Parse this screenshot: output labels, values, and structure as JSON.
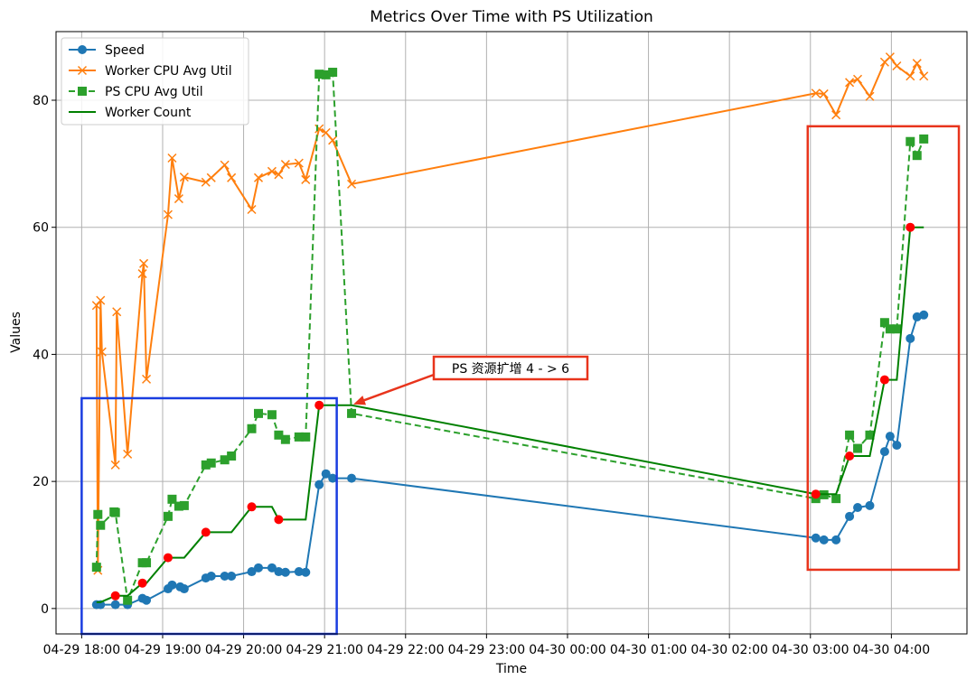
{
  "chart_data": {
    "type": "line",
    "title": "Metrics Over Time with PS Utilization",
    "xlabel": "Time",
    "ylabel": "Values",
    "x": [
      "04-29 18:11",
      "04-29 18:14",
      "04-29 18:25",
      "04-29 18:34",
      "04-29 18:45",
      "04-29 18:48",
      "04-29 19:04",
      "04-29 19:07",
      "04-29 19:13",
      "04-29 19:16",
      "04-29 19:32",
      "04-29 19:36",
      "04-29 19:46",
      "04-29 19:51",
      "04-29 20:06",
      "04-29 20:11",
      "04-29 20:21",
      "04-29 20:26",
      "04-29 20:31",
      "04-29 20:41",
      "04-29 20:46",
      "04-29 20:56",
      "04-29 21:01",
      "04-29 21:06",
      "04-29 21:20",
      "04-30 03:04",
      "04-30 03:10",
      "04-30 03:19",
      "04-30 03:29",
      "04-30 03:35",
      "04-30 03:44",
      "04-30 03:55",
      "04-30 03:59",
      "04-30 04:04",
      "04-30 04:14",
      "04-30 04:19",
      "04-30 04:24"
    ],
    "series": [
      {
        "name": "Speed",
        "color": "#1f77b4",
        "marker": "circle",
        "linestyle": "solid",
        "values": [
          0.6,
          0.6,
          0.6,
          0.6,
          1.6,
          1.3,
          3.1,
          3.7,
          3.4,
          3.1,
          4.8,
          5.1,
          5.1,
          5.1,
          5.8,
          6.4,
          6.4,
          5.8,
          5.7,
          5.8,
          5.7,
          19.5,
          21.2,
          20.5,
          20.5,
          11.1,
          10.8,
          10.8,
          14.5,
          15.9,
          16.2,
          24.7,
          27.1,
          25.7,
          42.5,
          45.9,
          46.2
        ]
      },
      {
        "name": "Worker CPU Avg Util",
        "color": "#ff7f0e",
        "marker": "x",
        "linestyle": "solid",
        "x": [
          "04-29 18:11",
          "04-29 18:12",
          "04-29 18:14",
          "04-29 18:15",
          "04-29 18:25",
          "04-29 18:26",
          "04-29 18:34",
          "04-29 18:45",
          "04-29 18:46",
          "04-29 18:48",
          "04-29 19:04",
          "04-29 19:07",
          "04-29 19:12",
          "04-29 19:16",
          "04-29 19:32",
          "04-29 19:36",
          "04-29 19:46",
          "04-29 19:51",
          "04-29 20:06",
          "04-29 20:11",
          "04-29 20:21",
          "04-29 20:26",
          "04-29 20:31",
          "04-29 20:41",
          "04-29 20:46",
          "04-29 20:56",
          "04-29 21:01",
          "04-29 21:06",
          "04-29 21:20",
          "04-30 03:04",
          "04-30 03:10",
          "04-30 03:19",
          "04-30 03:29",
          "04-30 03:35",
          "04-30 03:44",
          "04-30 03:55",
          "04-30 03:59",
          "04-30 04:04",
          "04-30 04:14",
          "04-30 04:19",
          "04-30 04:24"
        ],
        "values": [
          47.7,
          6.0,
          48.5,
          40.4,
          22.6,
          46.7,
          24.3,
          52.7,
          54.3,
          36.1,
          62.0,
          70.9,
          64.5,
          67.9,
          67.1,
          67.8,
          69.8,
          67.8,
          62.8,
          67.8,
          68.8,
          68.3,
          69.9,
          70.1,
          67.5,
          75.5,
          74.9,
          73.7,
          66.8,
          81.1,
          81.0,
          77.7,
          82.8,
          83.3,
          80.6,
          86.0,
          86.8,
          85.4,
          83.8,
          85.8,
          83.8
        ]
      },
      {
        "name": "PS CPU Avg Util",
        "color": "#2ca02c",
        "marker": "square",
        "linestyle": "dashed",
        "x": [
          "04-29 18:11",
          "04-29 18:12",
          "04-29 18:14",
          "04-29 18:24",
          "04-29 18:25",
          "04-29 18:34",
          "04-29 18:45",
          "04-29 18:48",
          "04-29 19:04",
          "04-29 19:07",
          "04-29 19:12",
          "04-29 19:16",
          "04-29 19:32",
          "04-29 19:36",
          "04-29 19:46",
          "04-29 19:51",
          "04-29 20:06",
          "04-29 20:11",
          "04-29 20:21",
          "04-29 20:26",
          "04-29 20:31",
          "04-29 20:41",
          "04-29 20:46",
          "04-29 20:56",
          "04-29 21:01",
          "04-29 21:06",
          "04-29 21:20",
          "04-30 03:04",
          "04-30 03:10",
          "04-30 03:19",
          "04-30 03:29",
          "04-30 03:35",
          "04-30 03:44",
          "04-30 03:55",
          "04-30 03:59",
          "04-30 04:04",
          "04-30 04:14",
          "04-30 04:19",
          "04-30 04:24"
        ],
        "values": [
          6.5,
          14.8,
          13.1,
          15.2,
          15.1,
          1.3,
          7.2,
          7.2,
          14.5,
          17.2,
          16.1,
          16.2,
          22.6,
          22.9,
          23.4,
          24.0,
          28.3,
          30.7,
          30.5,
          27.3,
          26.6,
          27.0,
          27.0,
          84.1,
          84.0,
          84.4,
          30.7,
          17.3,
          17.9,
          17.3,
          27.3,
          25.2,
          27.3,
          45.0,
          44.0,
          44.0,
          73.5,
          71.3,
          73.9
        ]
      },
      {
        "name": "Worker Count",
        "color": "#008000",
        "marker": "none",
        "linestyle": "solid",
        "change_marker_color": "#ff0000",
        "values": [
          1,
          1,
          2,
          2,
          4,
          4,
          8,
          8,
          8,
          8,
          12,
          12,
          12,
          12,
          16,
          16,
          16,
          14,
          14,
          14,
          14,
          32,
          32,
          32,
          32,
          18,
          18,
          18,
          24,
          24,
          24,
          36,
          36,
          36,
          60,
          60,
          60
        ]
      }
    ],
    "xlim": [
      "04-29 17:41",
      "04-30 04:56"
    ],
    "xticks": [
      "04-29 18:00",
      "04-29 19:00",
      "04-29 20:00",
      "04-29 21:00",
      "04-29 22:00",
      "04-29 23:00",
      "04-30 00:00",
      "04-30 01:00",
      "04-30 02:00",
      "04-30 03:00",
      "04-30 04:00"
    ],
    "ylim": [
      -4,
      90.8
    ],
    "yticks": [
      0,
      20,
      40,
      60,
      80
    ],
    "grid": true,
    "legend": "upper left",
    "highlight_boxes": [
      {
        "x": [
          "04-29 18:00",
          "04-29 21:09"
        ],
        "y": [
          -4,
          33.1
        ],
        "color": "#1a3de0"
      },
      {
        "x": [
          "04-30 02:58",
          "04-30 04:50"
        ],
        "y": [
          6.1,
          75.9
        ],
        "color": "#e8341c"
      }
    ],
    "annotation": {
      "text": "PS 资源扩增 4 - > 6",
      "xy": [
        "04-29 21:20",
        32
      ],
      "color": "#e8341c"
    }
  }
}
